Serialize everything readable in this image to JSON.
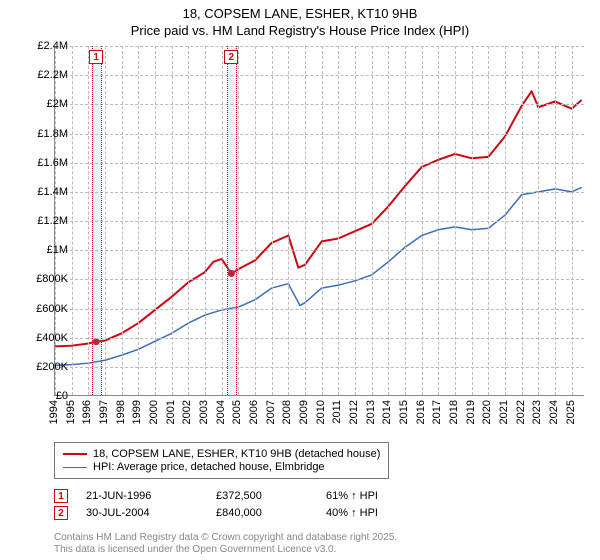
{
  "title_line1": "18, COPSEM LANE, ESHER, KT10 9HB",
  "title_line2": "Price paid vs. HM Land Registry's House Price Index (HPI)",
  "chart": {
    "type": "line",
    "background_color": "#ffffff",
    "grid_color": "#bbbbbb",
    "axis_color": "#888888",
    "x": {
      "min": 1994,
      "max": 2025.8,
      "ticks": [
        1994,
        1995,
        1996,
        1997,
        1998,
        1999,
        2000,
        2001,
        2002,
        2003,
        2004,
        2005,
        2006,
        2007,
        2008,
        2009,
        2010,
        2011,
        2012,
        2013,
        2014,
        2015,
        2016,
        2017,
        2018,
        2019,
        2020,
        2021,
        2022,
        2023,
        2024,
        2025
      ],
      "label_fontsize": 11,
      "label_rotation_deg": -90
    },
    "y": {
      "min": 0,
      "max": 2400000,
      "ticks": [
        0,
        200000,
        400000,
        600000,
        800000,
        1000000,
        1200000,
        1400000,
        1600000,
        1800000,
        2000000,
        2200000,
        2400000
      ],
      "tick_labels": [
        "£0",
        "£200K",
        "£400K",
        "£600K",
        "£800K",
        "£1M",
        "£1.2M",
        "£1.4M",
        "£1.6M",
        "£1.8M",
        "£2M",
        "£2.2M",
        "£2.4M"
      ],
      "label_fontsize": 11
    },
    "series": [
      {
        "name": "18, COPSEM LANE, ESHER, KT10 9HB (detached house)",
        "color": "#cc0714",
        "line_width": 2,
        "data": [
          [
            1994,
            340000
          ],
          [
            1995,
            345000
          ],
          [
            1996,
            360000
          ],
          [
            1996.47,
            372500
          ],
          [
            1997,
            380000
          ],
          [
            1998,
            430000
          ],
          [
            1999,
            500000
          ],
          [
            2000,
            590000
          ],
          [
            2001,
            680000
          ],
          [
            2002,
            780000
          ],
          [
            2003,
            850000
          ],
          [
            2003.5,
            920000
          ],
          [
            2004,
            940000
          ],
          [
            2004.58,
            840000
          ],
          [
            2005,
            870000
          ],
          [
            2006,
            930000
          ],
          [
            2007,
            1050000
          ],
          [
            2008,
            1100000
          ],
          [
            2008.6,
            880000
          ],
          [
            2009,
            900000
          ],
          [
            2010,
            1060000
          ],
          [
            2011,
            1080000
          ],
          [
            2012,
            1130000
          ],
          [
            2013,
            1180000
          ],
          [
            2014,
            1300000
          ],
          [
            2015,
            1440000
          ],
          [
            2016,
            1570000
          ],
          [
            2017,
            1620000
          ],
          [
            2018,
            1660000
          ],
          [
            2019,
            1630000
          ],
          [
            2020,
            1640000
          ],
          [
            2021,
            1780000
          ],
          [
            2022,
            1990000
          ],
          [
            2022.6,
            2090000
          ],
          [
            2023,
            1980000
          ],
          [
            2024,
            2020000
          ],
          [
            2025,
            1970000
          ],
          [
            2025.6,
            2030000
          ]
        ]
      },
      {
        "name": "HPI: Average price, detached house, Elmbridge",
        "color": "#3a6fb7",
        "line_width": 1.5,
        "data": [
          [
            1994,
            210000
          ],
          [
            1995,
            215000
          ],
          [
            1996,
            225000
          ],
          [
            1997,
            245000
          ],
          [
            1998,
            280000
          ],
          [
            1999,
            320000
          ],
          [
            2000,
            375000
          ],
          [
            2001,
            430000
          ],
          [
            2002,
            500000
          ],
          [
            2003,
            555000
          ],
          [
            2004,
            590000
          ],
          [
            2005,
            610000
          ],
          [
            2006,
            660000
          ],
          [
            2007,
            740000
          ],
          [
            2008,
            770000
          ],
          [
            2008.7,
            620000
          ],
          [
            2009,
            640000
          ],
          [
            2010,
            740000
          ],
          [
            2011,
            760000
          ],
          [
            2012,
            790000
          ],
          [
            2013,
            830000
          ],
          [
            2014,
            920000
          ],
          [
            2015,
            1020000
          ],
          [
            2016,
            1100000
          ],
          [
            2017,
            1140000
          ],
          [
            2018,
            1160000
          ],
          [
            2019,
            1140000
          ],
          [
            2020,
            1150000
          ],
          [
            2021,
            1240000
          ],
          [
            2022,
            1380000
          ],
          [
            2023,
            1400000
          ],
          [
            2024,
            1420000
          ],
          [
            2025,
            1400000
          ],
          [
            2025.6,
            1430000
          ]
        ]
      }
    ],
    "markers": [
      {
        "id": "1",
        "x": 1996.47,
        "y": 372500,
        "band_from": 1996.2,
        "band_to": 1996.8
      },
      {
        "id": "2",
        "x": 2004.58,
        "y": 840000,
        "band_from": 2004.3,
        "band_to": 2004.9
      }
    ]
  },
  "legend": {
    "items": [
      {
        "color": "#cc0714",
        "label": "18, COPSEM LANE, ESHER, KT10 9HB (detached house)"
      },
      {
        "color": "#3a6fb7",
        "label": "HPI: Average price, detached house, Elmbridge"
      }
    ]
  },
  "events": [
    {
      "id": "1",
      "date": "21-JUN-1996",
      "price": "£372,500",
      "pct": "61% ↑ HPI"
    },
    {
      "id": "2",
      "date": "30-JUL-2004",
      "price": "£840,000",
      "pct": "40% ↑ HPI"
    }
  ],
  "footer": {
    "line1": "Contains HM Land Registry data © Crown copyright and database right 2025.",
    "line2": "This data is licensed under the Open Government Licence v3.0."
  }
}
